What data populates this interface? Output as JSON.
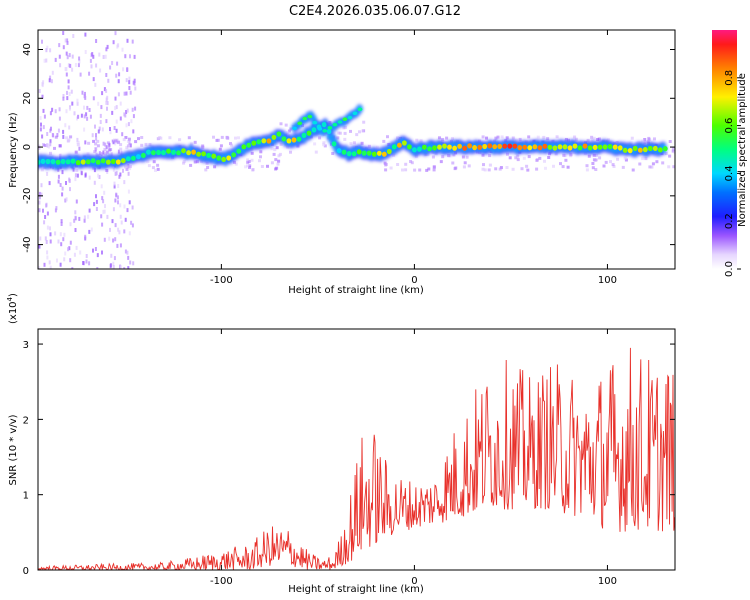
{
  "title": "C2E4.2026.035.06.07.G12",
  "chart_data": [
    {
      "type": "heatmap",
      "xlabel": "Height of straight line (km)",
      "ylabel": "Frequency (Hz)",
      "xlim": [
        -195,
        135
      ],
      "ylim": [
        -50,
        48
      ],
      "xticks": [
        -100,
        0,
        100
      ],
      "yticks": [
        -40,
        -20,
        0,
        20,
        40
      ],
      "colorbar": {
        "label": "Normalized spectral amplitude",
        "range": [
          0,
          1
        ],
        "ticks": [
          0.0,
          0.2,
          0.4,
          0.6,
          0.8
        ]
      },
      "ridge": [
        {
          "x": -195,
          "freq": -6,
          "amp": 0.55
        },
        {
          "x": -185,
          "freq": -6.5,
          "amp": 0.6
        },
        {
          "x": -175,
          "freq": -6,
          "amp": 0.65
        },
        {
          "x": -165,
          "freq": -6,
          "amp": 0.7
        },
        {
          "x": -155,
          "freq": -6,
          "amp": 0.75
        },
        {
          "x": -145,
          "freq": -4,
          "amp": 0.5
        },
        {
          "x": -135,
          "freq": -2,
          "amp": 0.55
        },
        {
          "x": -125,
          "freq": -2,
          "amp": 0.6
        },
        {
          "x": -115,
          "freq": -2,
          "amp": 0.75
        },
        {
          "x": -105,
          "freq": -4,
          "amp": 0.6
        },
        {
          "x": -98,
          "freq": -5,
          "amp": 0.85
        },
        {
          "x": -92,
          "freq": -2,
          "amp": 0.6
        },
        {
          "x": -86,
          "freq": 1,
          "amp": 0.55
        },
        {
          "x": -80,
          "freq": 2,
          "amp": 0.65
        },
        {
          "x": -74,
          "freq": 3,
          "amp": 0.85
        },
        {
          "x": -70,
          "freq": 5,
          "amp": 0.6
        },
        {
          "x": -64,
          "freq": 2,
          "amp": 0.8
        },
        {
          "x": -58,
          "freq": 4,
          "amp": 0.6
        },
        {
          "x": -52,
          "freq": 7,
          "amp": 0.55
        },
        {
          "x": -46,
          "freq": 9,
          "amp": 0.5
        },
        {
          "x": -40,
          "freq": -1,
          "amp": 0.5
        },
        {
          "x": -34,
          "freq": -3,
          "amp": 0.6
        },
        {
          "x": -28,
          "freq": -2,
          "amp": 0.6
        },
        {
          "x": -22,
          "freq": -3,
          "amp": 0.75
        },
        {
          "x": -16,
          "freq": -3,
          "amp": 0.85
        },
        {
          "x": -10,
          "freq": 0,
          "amp": 0.6
        },
        {
          "x": -6,
          "freq": 2,
          "amp": 0.9
        },
        {
          "x": 0,
          "freq": -1,
          "amp": 0.55
        },
        {
          "x": 10,
          "freq": 0,
          "amp": 0.7
        },
        {
          "x": 20,
          "freq": 0,
          "amp": 0.85
        },
        {
          "x": 30,
          "freq": 0,
          "amp": 0.95
        },
        {
          "x": 40,
          "freq": 0,
          "amp": 0.9
        },
        {
          "x": 50,
          "freq": 0,
          "amp": 0.95
        },
        {
          "x": 60,
          "freq": 0,
          "amp": 0.95
        },
        {
          "x": 70,
          "freq": 0,
          "amp": 0.8
        },
        {
          "x": 80,
          "freq": 0,
          "amp": 0.7
        },
        {
          "x": 90,
          "freq": 0,
          "amp": 0.8
        },
        {
          "x": 100,
          "freq": 0,
          "amp": 0.7
        },
        {
          "x": 110,
          "freq": -1,
          "amp": 0.75
        },
        {
          "x": 120,
          "freq": -1,
          "amp": 0.8
        },
        {
          "x": 130,
          "freq": -1,
          "amp": 0.7
        }
      ],
      "side_branch": [
        {
          "x": -62,
          "freq": 8,
          "amp": 0.5
        },
        {
          "x": -58,
          "freq": 11,
          "amp": 0.55
        },
        {
          "x": -54,
          "freq": 13,
          "amp": 0.6
        },
        {
          "x": -48,
          "freq": 6,
          "amp": 0.45
        },
        {
          "x": -44,
          "freq": 8,
          "amp": 0.5
        },
        {
          "x": -38,
          "freq": 10,
          "amp": 0.55
        },
        {
          "x": -34,
          "freq": 12,
          "amp": 0.55
        },
        {
          "x": -30,
          "freq": 14,
          "amp": 0.5
        },
        {
          "x": -28,
          "freq": 16,
          "amp": 0.5
        }
      ]
    },
    {
      "type": "line",
      "xlabel": "Height of straight line (km)",
      "ylabel": "SNR (10 * v/v)",
      "scale_label": "(x10",
      "scale_exp": "4",
      "scale_close": ")",
      "xlim": [
        -195,
        135
      ],
      "ylim": [
        0,
        3.2
      ],
      "xticks": [
        -100,
        0,
        100
      ],
      "yticks": [
        0,
        1,
        2,
        3
      ],
      "series": [
        {
          "name": "SNR",
          "color": "#e8302a",
          "envelope": {
            "x": [
              -195,
              -160,
              -130,
              -110,
              -95,
              -85,
              -75,
              -65,
              -55,
              -48,
              -42,
              -38,
              -33,
              -28,
              -22,
              -15,
              -8,
              0,
              10,
              20,
              30,
              40,
              50,
              60,
              70,
              80,
              90,
              100,
              110,
              120,
              130,
              135
            ],
            "min": [
              0,
              0,
              0,
              0,
              0,
              0,
              0.05,
              0.05,
              0,
              0,
              0,
              0.05,
              0.1,
              0.2,
              0.3,
              0.4,
              0.5,
              0.55,
              0.6,
              0.65,
              0.7,
              0.8,
              0.8,
              0.8,
              0.8,
              0.7,
              0.7,
              0.5,
              0.5,
              0.5,
              0.5,
              0.5
            ],
            "max": [
              0.05,
              0.08,
              0.1,
              0.2,
              0.3,
              0.35,
              0.6,
              0.6,
              0.25,
              0.15,
              0.2,
              0.5,
              1.1,
              1.8,
              2.0,
              1.5,
              1.3,
              1.2,
              1.3,
              1.9,
              2.4,
              2.8,
              2.8,
              2.6,
              2.8,
              2.7,
              2.6,
              2.8,
              3.1,
              2.9,
              2.9,
              2.8
            ]
          }
        }
      ]
    }
  ]
}
